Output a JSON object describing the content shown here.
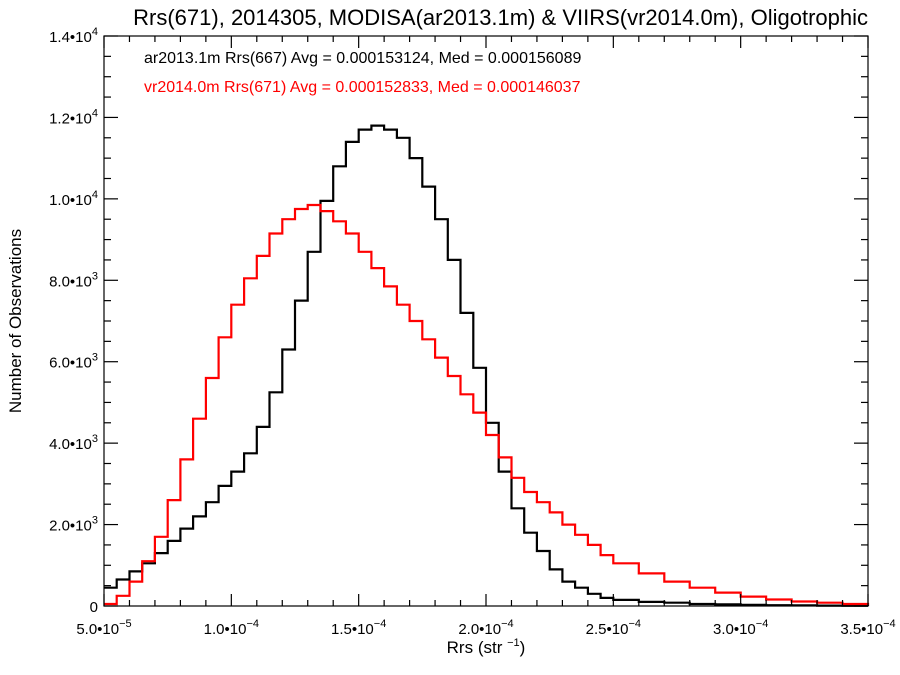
{
  "chart_data": {
    "type": "line",
    "title": "Rrs(671), 2014305, MODISA(ar2013.1m) & VIIRS(vr2014.0m), Oligotrophic",
    "xlabel": "Rrs (str⁻¹)",
    "ylabel": "Number of Observations",
    "xlim": [
      5e-05,
      0.00035
    ],
    "ylim": [
      0,
      14000
    ],
    "x_tick_values": [
      5e-05,
      0.0001,
      0.00015,
      0.0002,
      0.00025,
      0.0003,
      0.00035
    ],
    "x_tick_labels": [
      {
        "mant": "5.0•10",
        "exp": "−5"
      },
      {
        "mant": "1.0•10",
        "exp": "−4"
      },
      {
        "mant": "1.5•10",
        "exp": "−4"
      },
      {
        "mant": "2.0•10",
        "exp": "−4"
      },
      {
        "mant": "2.5•10",
        "exp": "−4"
      },
      {
        "mant": "3.0•10",
        "exp": "−4"
      },
      {
        "mant": "3.5•10",
        "exp": "−4"
      }
    ],
    "y_tick_values": [
      0,
      2000,
      4000,
      6000,
      8000,
      10000,
      12000,
      14000
    ],
    "y_tick_labels": [
      {
        "mant": "0",
        "exp": ""
      },
      {
        "mant": "2.0•10",
        "exp": "3"
      },
      {
        "mant": "4.0•10",
        "exp": "3"
      },
      {
        "mant": "6.0•10",
        "exp": "3"
      },
      {
        "mant": "8.0•10",
        "exp": "3"
      },
      {
        "mant": "1.0•10",
        "exp": "4"
      },
      {
        "mant": "1.2•10",
        "exp": "4"
      },
      {
        "mant": "1.4•10",
        "exp": "4"
      }
    ],
    "x": [
      5e-05,
      5.5e-05,
      6e-05,
      6.5e-05,
      7e-05,
      7.5e-05,
      8e-05,
      8.5e-05,
      9e-05,
      9.5e-05,
      0.0001,
      0.000105,
      0.00011,
      0.000115,
      0.00012,
      0.000125,
      0.00013,
      0.000135,
      0.00014,
      0.000145,
      0.00015,
      0.000155,
      0.00016,
      0.000165,
      0.00017,
      0.000175,
      0.00018,
      0.000185,
      0.00019,
      0.000195,
      0.0002,
      0.000205,
      0.00021,
      0.000215,
      0.00022,
      0.000225,
      0.00023,
      0.000235,
      0.00024,
      0.000245,
      0.00025,
      0.00026,
      0.00027,
      0.00028,
      0.00029,
      0.0003,
      0.00031,
      0.00032,
      0.00033,
      0.00034,
      0.00035
    ],
    "series": [
      {
        "name": "ar2013.1m Rrs(667)",
        "color": "#000000",
        "values": [
          450,
          650,
          850,
          1050,
          1300,
          1600,
          1900,
          2200,
          2550,
          2950,
          3300,
          3750,
          4400,
          5250,
          6300,
          7500,
          8700,
          9950,
          10800,
          11400,
          11700,
          11800,
          11700,
          11500,
          11000,
          10300,
          9500,
          8500,
          7200,
          5850,
          4500,
          3300,
          2400,
          1800,
          1350,
          900,
          600,
          450,
          300,
          200,
          150,
          100,
          80,
          50,
          40,
          30,
          20,
          15,
          10,
          5,
          3
        ]
      },
      {
        "name": "vr2014.0m Rrs(671)",
        "color": "#ff0000",
        "values": [
          50,
          250,
          600,
          1100,
          1700,
          2600,
          3600,
          4600,
          5600,
          6600,
          7400,
          8050,
          8600,
          9150,
          9500,
          9750,
          9850,
          9700,
          9450,
          9150,
          8700,
          8300,
          7850,
          7400,
          7000,
          6550,
          6100,
          5650,
          5200,
          4750,
          4200,
          3650,
          3150,
          2800,
          2550,
          2300,
          2000,
          1750,
          1500,
          1250,
          1050,
          800,
          600,
          450,
          330,
          230,
          160,
          110,
          80,
          50,
          30
        ]
      }
    ],
    "annotations": [
      {
        "text": "ar2013.1m Rrs(667) Avg = 0.000153124, Med = 0.000156089",
        "color": "#000000"
      },
      {
        "text": "vr2014.0m Rrs(671) Avg = 0.000152833, Med = 0.000146037",
        "color": "#ff0000"
      }
    ]
  }
}
